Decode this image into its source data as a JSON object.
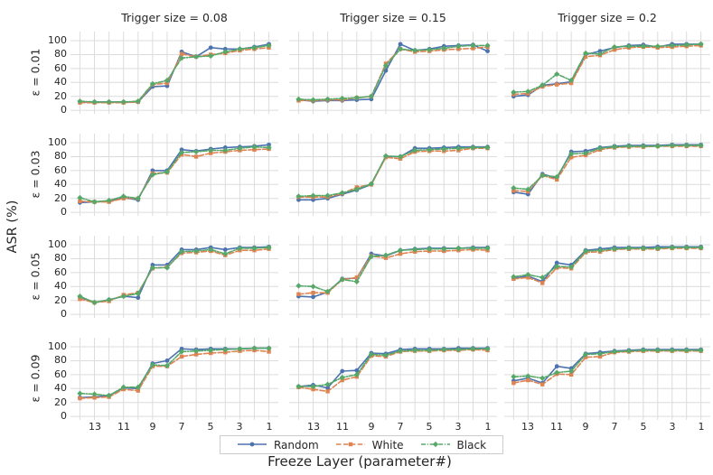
{
  "figure": {
    "col_titles": [
      "Trigger size = 0.08",
      "Trigger size = 0.15",
      "Trigger size = 0.2"
    ],
    "row_labels": [
      "ε = 0.01",
      "ε = 0.03",
      "ε = 0.05",
      "ε = 0.09"
    ],
    "xlabel": "Freeze Layer (parameter#)",
    "ylabel": "ASR (%)",
    "x_ticks": [
      "13",
      "11",
      "9",
      "7",
      "5",
      "3",
      "1"
    ],
    "y_ticks": [
      "0",
      "20",
      "40",
      "60",
      "80",
      "100"
    ],
    "colors": {
      "grid": "#dcdcdc",
      "text": "#262626",
      "background": "#ffffff"
    },
    "legend": [
      {
        "label": "Random",
        "color": "#4c72b0",
        "dash": "solid",
        "marker": "circle"
      },
      {
        "label": "White",
        "color": "#dd8452",
        "dash": "dashed",
        "marker": "square"
      },
      {
        "label": "Black",
        "color": "#55a868",
        "dash": "dashdot",
        "marker": "diamond"
      }
    ]
  },
  "chart_data": {
    "type": "line",
    "x": [
      14,
      13,
      12,
      11,
      10,
      9,
      8,
      7,
      6,
      5,
      4,
      3,
      2,
      1
    ],
    "x_axis_reversed": true,
    "ylim": [
      0,
      100
    ],
    "grid_on": true,
    "legend_position": "bottom",
    "grid": [
      {
        "row": 0,
        "col": 0,
        "trigger_size": "0.08",
        "epsilon": "0.01",
        "series": {
          "Random": [
            12,
            12,
            12,
            12,
            12,
            34,
            35,
            84,
            77,
            90,
            88,
            88,
            91,
            95
          ],
          "White": [
            11,
            11,
            11,
            11,
            12,
            37,
            39,
            81,
            77,
            80,
            82,
            86,
            88,
            90
          ],
          "Black": [
            13,
            12,
            12,
            12,
            13,
            38,
            43,
            75,
            77,
            78,
            84,
            88,
            90,
            93
          ]
        }
      },
      {
        "row": 0,
        "col": 1,
        "trigger_size": "0.15",
        "epsilon": "0.01",
        "series": {
          "Random": [
            15,
            13,
            14,
            14,
            15,
            16,
            57,
            95,
            86,
            88,
            92,
            93,
            94,
            85
          ],
          "White": [
            14,
            14,
            15,
            15,
            18,
            20,
            67,
            88,
            84,
            85,
            87,
            88,
            89,
            91
          ],
          "Black": [
            16,
            15,
            16,
            17,
            18,
            20,
            64,
            88,
            86,
            87,
            89,
            92,
            93,
            93
          ]
        }
      },
      {
        "row": 0,
        "col": 2,
        "trigger_size": "0.2",
        "epsilon": "0.01",
        "series": {
          "Random": [
            20,
            22,
            36,
            38,
            41,
            80,
            85,
            90,
            93,
            94,
            91,
            95,
            95,
            95
          ],
          "White": [
            23,
            24,
            34,
            37,
            39,
            77,
            79,
            87,
            90,
            91,
            90,
            91,
            92,
            93
          ],
          "Black": [
            26,
            27,
            36,
            52,
            43,
            82,
            81,
            91,
            92,
            92,
            92,
            93,
            94,
            95
          ]
        }
      },
      {
        "row": 1,
        "col": 0,
        "trigger_size": "0.08",
        "epsilon": "0.03",
        "series": {
          "Random": [
            14,
            15,
            16,
            21,
            18,
            60,
            60,
            90,
            88,
            91,
            93,
            94,
            95,
            97
          ],
          "White": [
            16,
            15,
            15,
            20,
            20,
            56,
            57,
            83,
            80,
            85,
            87,
            89,
            90,
            91
          ],
          "Black": [
            21,
            15,
            17,
            23,
            20,
            54,
            58,
            86,
            87,
            89,
            89,
            92,
            94,
            93
          ]
        }
      },
      {
        "row": 1,
        "col": 1,
        "trigger_size": "0.15",
        "epsilon": "0.03",
        "series": {
          "Random": [
            18,
            18,
            20,
            26,
            32,
            40,
            80,
            80,
            92,
            92,
            93,
            94,
            94,
            94
          ],
          "White": [
            22,
            22,
            22,
            27,
            36,
            40,
            79,
            77,
            87,
            88,
            88,
            89,
            92,
            92
          ],
          "Black": [
            23,
            24,
            24,
            28,
            33,
            41,
            81,
            80,
            89,
            90,
            91,
            92,
            93,
            93
          ]
        }
      },
      {
        "row": 1,
        "col": 2,
        "trigger_size": "0.2",
        "epsilon": "0.03",
        "series": {
          "Random": [
            29,
            26,
            55,
            49,
            87,
            88,
            93,
            95,
            96,
            96,
            96,
            97,
            97,
            97
          ],
          "White": [
            31,
            30,
            53,
            47,
            79,
            82,
            90,
            93,
            94,
            94,
            95,
            95,
            95,
            95
          ],
          "Black": [
            35,
            33,
            53,
            51,
            84,
            85,
            92,
            94,
            95,
            95,
            95,
            96,
            96,
            96
          ]
        }
      },
      {
        "row": 2,
        "col": 0,
        "trigger_size": "0.08",
        "epsilon": "0.05",
        "series": {
          "Random": [
            25,
            17,
            21,
            26,
            24,
            71,
            71,
            93,
            93,
            96,
            93,
            96,
            96,
            97
          ],
          "White": [
            22,
            17,
            19,
            28,
            31,
            66,
            68,
            88,
            89,
            91,
            85,
            92,
            92,
            94
          ],
          "Black": [
            26,
            17,
            21,
            26,
            30,
            67,
            67,
            90,
            91,
            93,
            87,
            95,
            95,
            96
          ]
        }
      },
      {
        "row": 2,
        "col": 1,
        "trigger_size": "0.15",
        "epsilon": "0.05",
        "series": {
          "Random": [
            26,
            25,
            32,
            51,
            52,
            87,
            84,
            92,
            94,
            95,
            95,
            95,
            96,
            96
          ],
          "White": [
            29,
            31,
            31,
            50,
            53,
            84,
            81,
            87,
            90,
            91,
            91,
            92,
            93,
            92
          ],
          "Black": [
            41,
            40,
            33,
            50,
            47,
            83,
            85,
            92,
            93,
            94,
            94,
            95,
            95,
            95
          ]
        }
      },
      {
        "row": 2,
        "col": 2,
        "trigger_size": "0.2",
        "epsilon": "0.05",
        "series": {
          "Random": [
            52,
            55,
            47,
            74,
            71,
            92,
            94,
            96,
            96,
            96,
            97,
            97,
            97,
            97
          ],
          "White": [
            51,
            53,
            45,
            67,
            66,
            89,
            90,
            93,
            94,
            94,
            94,
            95,
            95,
            95
          ],
          "Black": [
            54,
            57,
            53,
            69,
            68,
            91,
            92,
            94,
            95,
            95,
            95,
            96,
            96,
            96
          ]
        }
      },
      {
        "row": 3,
        "col": 0,
        "trigger_size": "0.08",
        "epsilon": "0.09",
        "series": {
          "Random": [
            27,
            28,
            30,
            41,
            40,
            76,
            80,
            97,
            96,
            97,
            97,
            97,
            98,
            98
          ],
          "White": [
            26,
            27,
            28,
            39,
            37,
            72,
            72,
            86,
            89,
            91,
            92,
            94,
            95,
            93
          ],
          "Black": [
            33,
            32,
            30,
            42,
            42,
            74,
            73,
            93,
            94,
            95,
            96,
            97,
            98,
            98
          ]
        }
      },
      {
        "row": 3,
        "col": 1,
        "trigger_size": "0.15",
        "epsilon": "0.09",
        "series": {
          "Random": [
            43,
            45,
            41,
            65,
            66,
            91,
            90,
            96,
            97,
            97,
            97,
            98,
            98,
            98
          ],
          "White": [
            42,
            39,
            36,
            52,
            57,
            87,
            86,
            93,
            94,
            94,
            95,
            95,
            96,
            95
          ],
          "Black": [
            43,
            43,
            46,
            56,
            60,
            89,
            88,
            94,
            95,
            95,
            96,
            96,
            97,
            97
          ]
        }
      },
      {
        "row": 3,
        "col": 2,
        "trigger_size": "0.2",
        "epsilon": "0.09",
        "series": {
          "Random": [
            51,
            55,
            48,
            72,
            69,
            90,
            92,
            94,
            95,
            96,
            96,
            96,
            96,
            96
          ],
          "White": [
            48,
            52,
            46,
            61,
            60,
            85,
            86,
            92,
            93,
            94,
            94,
            94,
            94,
            94
          ],
          "Black": [
            57,
            58,
            55,
            63,
            65,
            89,
            90,
            93,
            94,
            95,
            95,
            95,
            95,
            95
          ]
        }
      }
    ]
  }
}
